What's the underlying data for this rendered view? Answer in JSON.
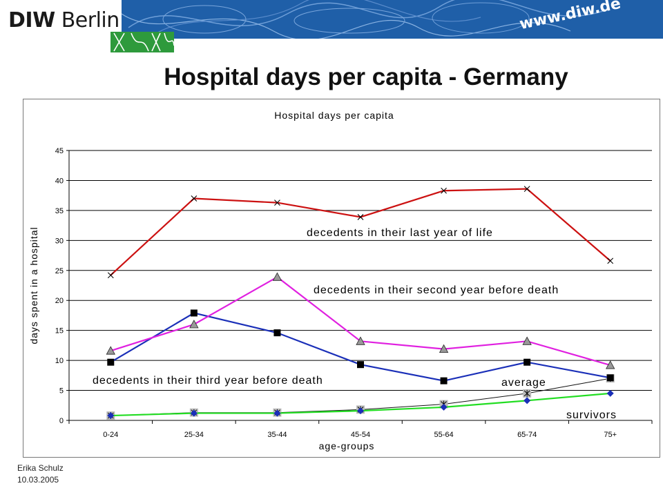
{
  "header": {
    "logo_word1": "DIW",
    "logo_word2": "Berlin",
    "url": "www.diw.de"
  },
  "slide_title": "Hospital days per capita - Germany",
  "footer": {
    "author": "Erika Schulz",
    "date": "10.03.2005"
  },
  "colors": {
    "banner": "#1f5fa8",
    "green_block": "#2e9a3c"
  },
  "chart_data": {
    "type": "line",
    "title": "Hospital days per capita",
    "xlabel": "age-groups",
    "ylabel": "days spent in a hospital",
    "categories": [
      "0-24",
      "25-34",
      "35-44",
      "45-54",
      "55-64",
      "65-74",
      "75+"
    ],
    "ylim": [
      0,
      45
    ],
    "yticks": [
      "0",
      "5",
      "10",
      "15",
      "20",
      "25",
      "30",
      "35",
      "40",
      "45"
    ],
    "grid": true,
    "series": [
      {
        "label": "decedents in their last year of life",
        "values": [
          24.2,
          37.0,
          36.3,
          33.9,
          38.3,
          38.6,
          26.6
        ],
        "color": "#cc1111",
        "marker": "x-mark"
      },
      {
        "label": "decedents in their second year before death",
        "values": [
          11.6,
          16.0,
          23.9,
          13.2,
          11.9,
          13.2,
          9.2
        ],
        "color": "#e020e0",
        "marker": "triangle"
      },
      {
        "label": "decedents in their third year before death",
        "values": [
          9.7,
          17.9,
          14.6,
          9.3,
          6.6,
          9.7,
          7.1
        ],
        "color": "#1a2fb8",
        "marker": "square"
      },
      {
        "label": "average",
        "values": [
          0.8,
          1.3,
          1.3,
          1.8,
          2.7,
          4.5,
          7.0
        ],
        "color": "#111111",
        "marker": "asterisk-box"
      },
      {
        "label": "survivors",
        "values": [
          0.8,
          1.2,
          1.2,
          1.6,
          2.2,
          3.3,
          4.5
        ],
        "color": "#22dd22",
        "marker": "diamond"
      }
    ]
  }
}
